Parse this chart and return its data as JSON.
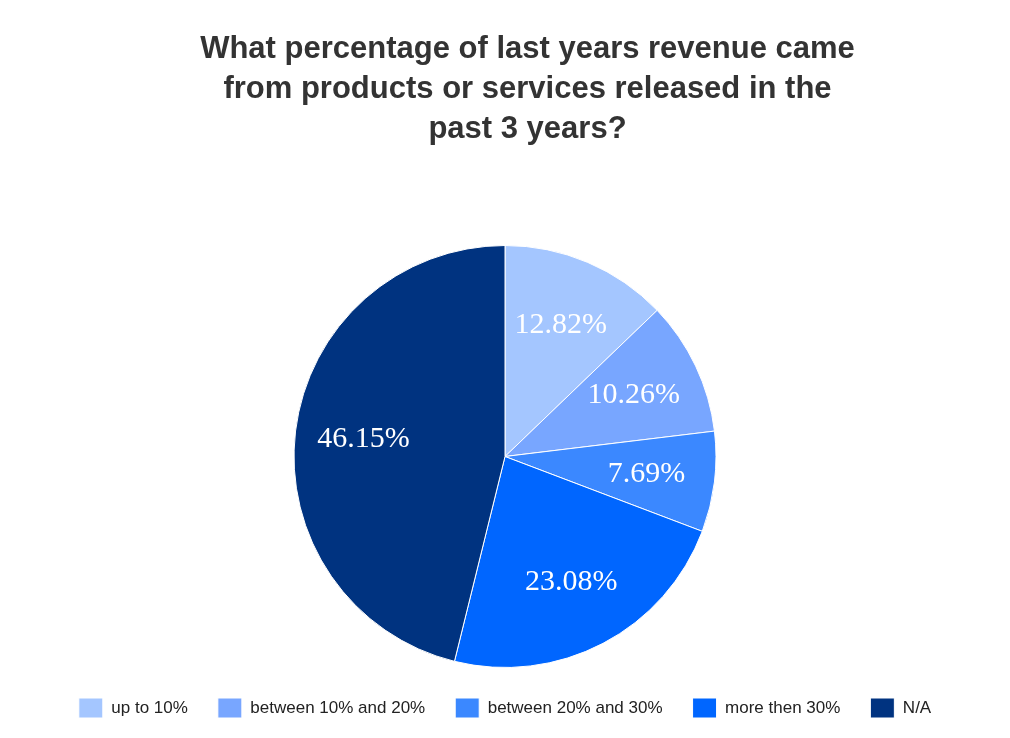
{
  "chart_data": {
    "type": "pie",
    "title": "What percentage of last years revenue came from products or services released in the past 3 years?",
    "categories": [
      "up to 10%",
      "between 10% and 20%",
      "between 20% and 30%",
      "more then 30%",
      "N/A"
    ],
    "values": [
      12.82,
      10.26,
      7.69,
      23.08,
      46.15
    ],
    "colors": [
      "#a4c6ff",
      "#78a6ff",
      "#3b88ff",
      "#0066ff",
      "#003380"
    ],
    "value_labels": [
      "12.82%",
      "10.26%",
      "7.69%",
      "23.08%",
      "46.15%"
    ],
    "legend": "bottom"
  }
}
